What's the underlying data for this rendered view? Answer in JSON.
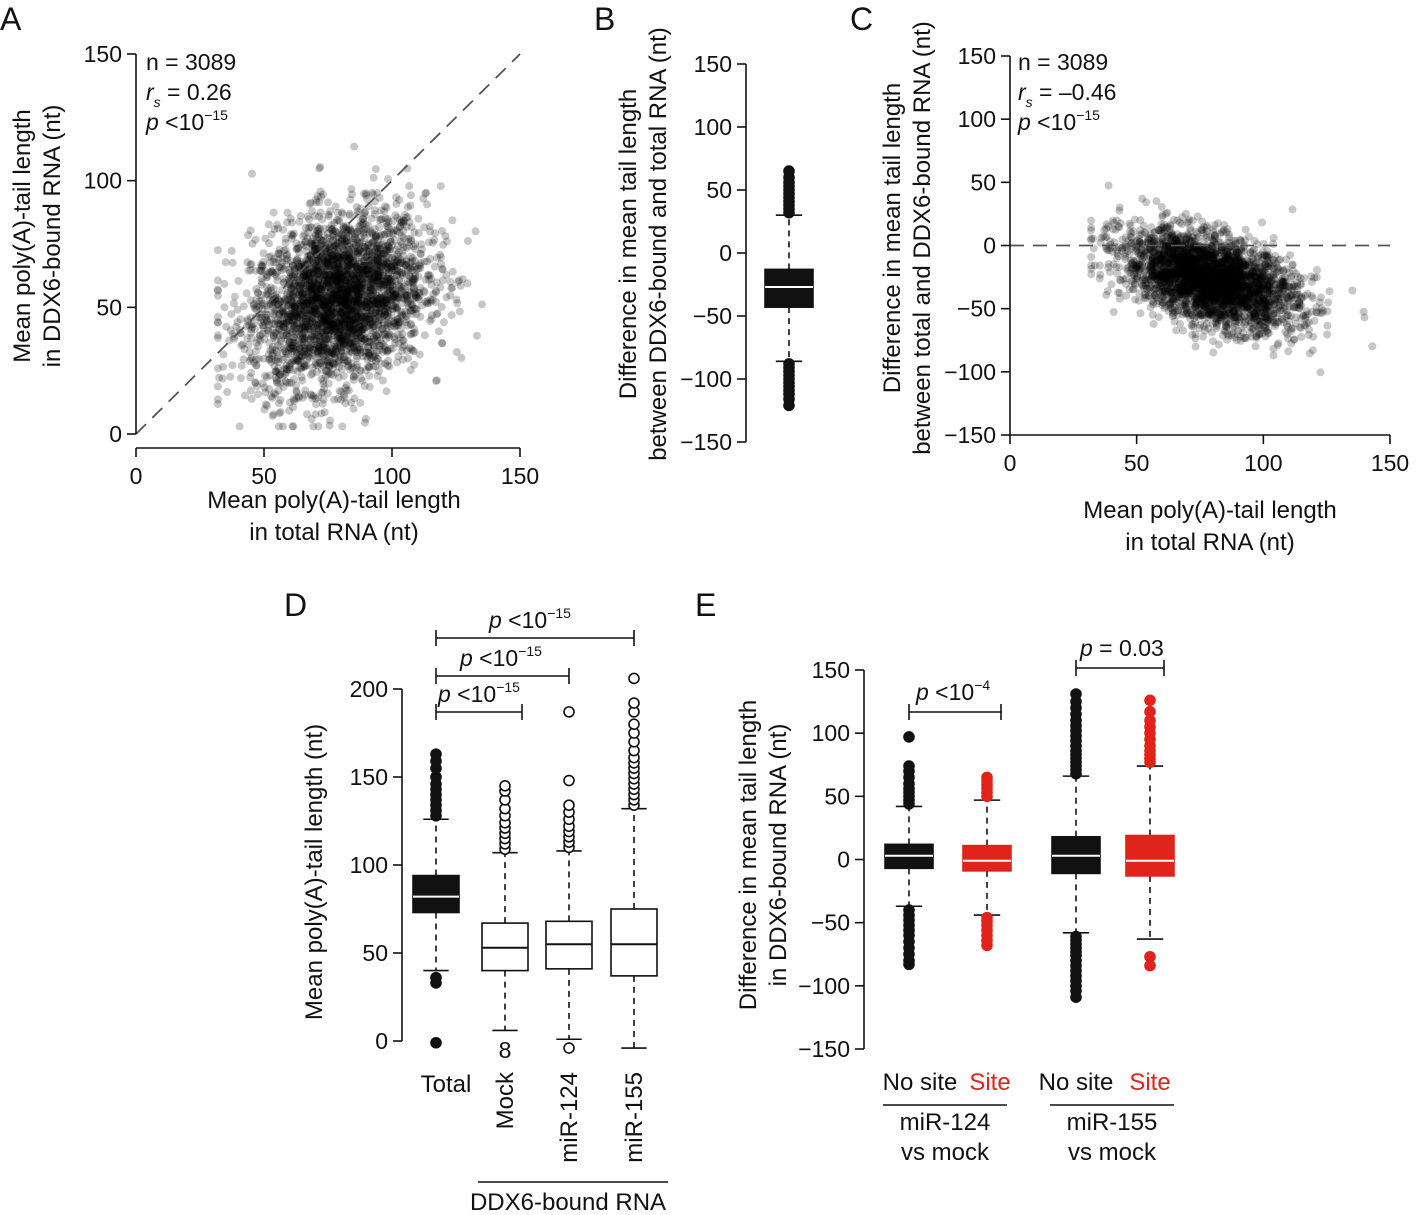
{
  "chart_data": [
    {
      "panel": "A",
      "type": "scatter",
      "xlabel_lines": [
        "Mean poly(A)-tail length",
        "in total RNA (nt)"
      ],
      "ylabel_lines": [
        "Mean poly(A)-tail length",
        "in DDX6-bound RNA (nt)"
      ],
      "xlim": [
        0,
        150
      ],
      "ylim": [
        0,
        150
      ],
      "xticks": [
        0,
        50,
        100,
        150
      ],
      "yticks": [
        0,
        50,
        100,
        150
      ],
      "reference_line": "y = x (dashed)",
      "annotations": {
        "n": "n = 3089",
        "rs_label": "r",
        "rs_sub": "s",
        "rs_value": " = 0.26",
        "p_label": "p",
        "p_text": " <10",
        "p_exp": "−15"
      },
      "cloud": {
        "n_points": 3089,
        "mean_x": 79,
        "mean_y": 53,
        "sd_x": 17,
        "sd_y": 17,
        "rho": 0.26
      }
    },
    {
      "panel": "B",
      "type": "box",
      "ylabel_lines": [
        "Difference in mean tail length",
        "between DDX6-bound and total RNA (nt)"
      ],
      "ylim": [
        -150,
        150
      ],
      "yticks": [
        -150,
        -100,
        -50,
        0,
        50,
        100,
        150
      ],
      "box": {
        "whisker_low": -86,
        "q1": -43,
        "median": -27,
        "q3": -13,
        "whisker_high": 30,
        "color": "#111111",
        "median_color": "#ffffff",
        "outliers_high": [
          32,
          35,
          38,
          41,
          44,
          47,
          50,
          53,
          56,
          60,
          65
        ],
        "outliers_low": [
          -88,
          -91,
          -94,
          -97,
          -100,
          -103,
          -106,
          -109,
          -112,
          -116,
          -121
        ]
      }
    },
    {
      "panel": "C",
      "type": "scatter",
      "xlabel_lines": [
        "Mean poly(A)-tail length",
        "in total RNA (nt)"
      ],
      "ylabel_lines": [
        "Difference in mean tail length",
        "between total and DDX6-bound RNA (nt)"
      ],
      "xlim": [
        0,
        150
      ],
      "ylim": [
        -150,
        150
      ],
      "xticks": [
        0,
        50,
        100,
        150
      ],
      "yticks": [
        -150,
        -100,
        -50,
        0,
        50,
        100,
        150
      ],
      "reference_line": "y = 0 (dashed)",
      "annotations": {
        "n": "n = 3089",
        "rs_label": "r",
        "rs_sub": "s",
        "rs_value": " = –0.46",
        "p_label": "p",
        "p_text": " <10",
        "p_exp": "−15"
      },
      "cloud": {
        "n_points": 3089,
        "mean_x": 79,
        "mean_y": -27,
        "sd_x": 17,
        "sd_y": 19,
        "rho": -0.46
      }
    },
    {
      "panel": "D",
      "type": "box",
      "ylabel_lines": [
        "Mean poly(A)-tail length (nt)"
      ],
      "ylim": [
        0,
        200
      ],
      "yticks": [
        0,
        50,
        100,
        150,
        200
      ],
      "categories": [
        "Total",
        "Mock",
        "miR-124",
        "miR-155"
      ],
      "group_label": "DDX6-bound RNA",
      "boxes": [
        {
          "name": "Total",
          "filled": true,
          "whisker_low": 40,
          "q1": 73,
          "median": 82,
          "q3": 94,
          "whisker_high": 126,
          "outliers_high": [
            128,
            131,
            134,
            137,
            140,
            143,
            146,
            150,
            155,
            159,
            163
          ],
          "outliers_low": [
            33,
            36,
            -1
          ]
        },
        {
          "name": "Mock",
          "filled": false,
          "whisker_low": 6,
          "q1": 40,
          "median": 53,
          "q3": 67,
          "whisker_high": 107,
          "outliers_high": [
            109,
            112,
            115,
            118,
            121,
            124,
            128,
            132,
            137,
            142,
            145
          ],
          "outliers_low": [],
          "below_label": "8"
        },
        {
          "name": "miR-124",
          "filled": false,
          "whisker_low": 1,
          "q1": 41,
          "median": 55,
          "q3": 68,
          "whisker_high": 108,
          "outliers_high": [
            110,
            113,
            116,
            119,
            122,
            126,
            130,
            134,
            148,
            187
          ],
          "outliers_low": [
            -4
          ]
        },
        {
          "name": "miR-155",
          "filled": false,
          "whisker_low": -4,
          "q1": 37,
          "median": 55,
          "q3": 75,
          "whisker_high": 132,
          "outliers_high": [
            134,
            137,
            140,
            143,
            146,
            149,
            152,
            155,
            158,
            161,
            165,
            170,
            175,
            180,
            187,
            192,
            206
          ],
          "outliers_low": []
        }
      ],
      "comparisons": [
        {
          "from": "Total",
          "to": "Mock",
          "p_label": "p",
          "p_text": " <10",
          "p_exp": "−15"
        },
        {
          "from": "Total",
          "to": "miR-124",
          "p_label": "p",
          "p_text": " <10",
          "p_exp": "−15"
        },
        {
          "from": "Total",
          "to": "miR-155",
          "p_label": "p",
          "p_text": " <10",
          "p_exp": "−15"
        }
      ]
    },
    {
      "panel": "E",
      "type": "box",
      "ylabel_lines": [
        "Difference in mean tail length",
        "in DDX6-bound RNA (nt)"
      ],
      "ylim": [
        -150,
        150
      ],
      "yticks": [
        -150,
        -100,
        -50,
        0,
        50,
        100,
        150
      ],
      "groups": [
        {
          "label_lines": [
            "miR-124",
            "vs mock"
          ],
          "boxes": [
            {
              "name": "No site",
              "color": "#111111",
              "whisker_low": -37,
              "q1": -7,
              "median": 3,
              "q3": 12,
              "whisker_high": 42,
              "outliers_high": [
                44,
                47,
                50,
                53,
                56,
                60,
                65,
                70,
                74,
                97
              ],
              "outliers_low": [
                -40,
                -44,
                -48,
                -52,
                -56,
                -60,
                -65,
                -70,
                -75,
                -80,
                -83
              ]
            },
            {
              "name": "Site",
              "color": "#e0231b",
              "whisker_low": -44,
              "q1": -9,
              "median": -1,
              "q3": 11,
              "whisker_high": 47,
              "outliers_high": [
                50,
                53,
                56,
                59,
                62,
                65
              ],
              "outliers_low": [
                -46,
                -49,
                -52,
                -56,
                -60,
                -64,
                -68
              ]
            }
          ],
          "p_label": "p",
          "p_text": " <10",
          "p_exp": "−4"
        },
        {
          "label_lines": [
            "miR-155",
            "vs mock"
          ],
          "boxes": [
            {
              "name": "No site",
              "color": "#111111",
              "whisker_low": -58,
              "q1": -11,
              "median": 3,
              "q3": 18,
              "whisker_high": 66,
              "outliers_high": [
                68,
                71,
                74,
                77,
                80,
                83,
                86,
                90,
                94,
                98,
                102,
                106,
                110,
                115,
                120,
                125,
                131
              ],
              "outliers_low": [
                -61,
                -64,
                -67,
                -70,
                -73,
                -76,
                -80,
                -84,
                -88,
                -92,
                -96,
                -100,
                -104,
                -109
              ]
            },
            {
              "name": "Site",
              "color": "#e0231b",
              "whisker_low": -63,
              "q1": -13,
              "median": -1,
              "q3": 19,
              "whisker_high": 74,
              "outliers_high": [
                77,
                80,
                83,
                86,
                90,
                95,
                100,
                105,
                110,
                117,
                126
              ],
              "outliers_low": [
                -77,
                -84
              ]
            }
          ],
          "p_label": "p",
          "p_text": " = 0.03"
        }
      ]
    }
  ]
}
